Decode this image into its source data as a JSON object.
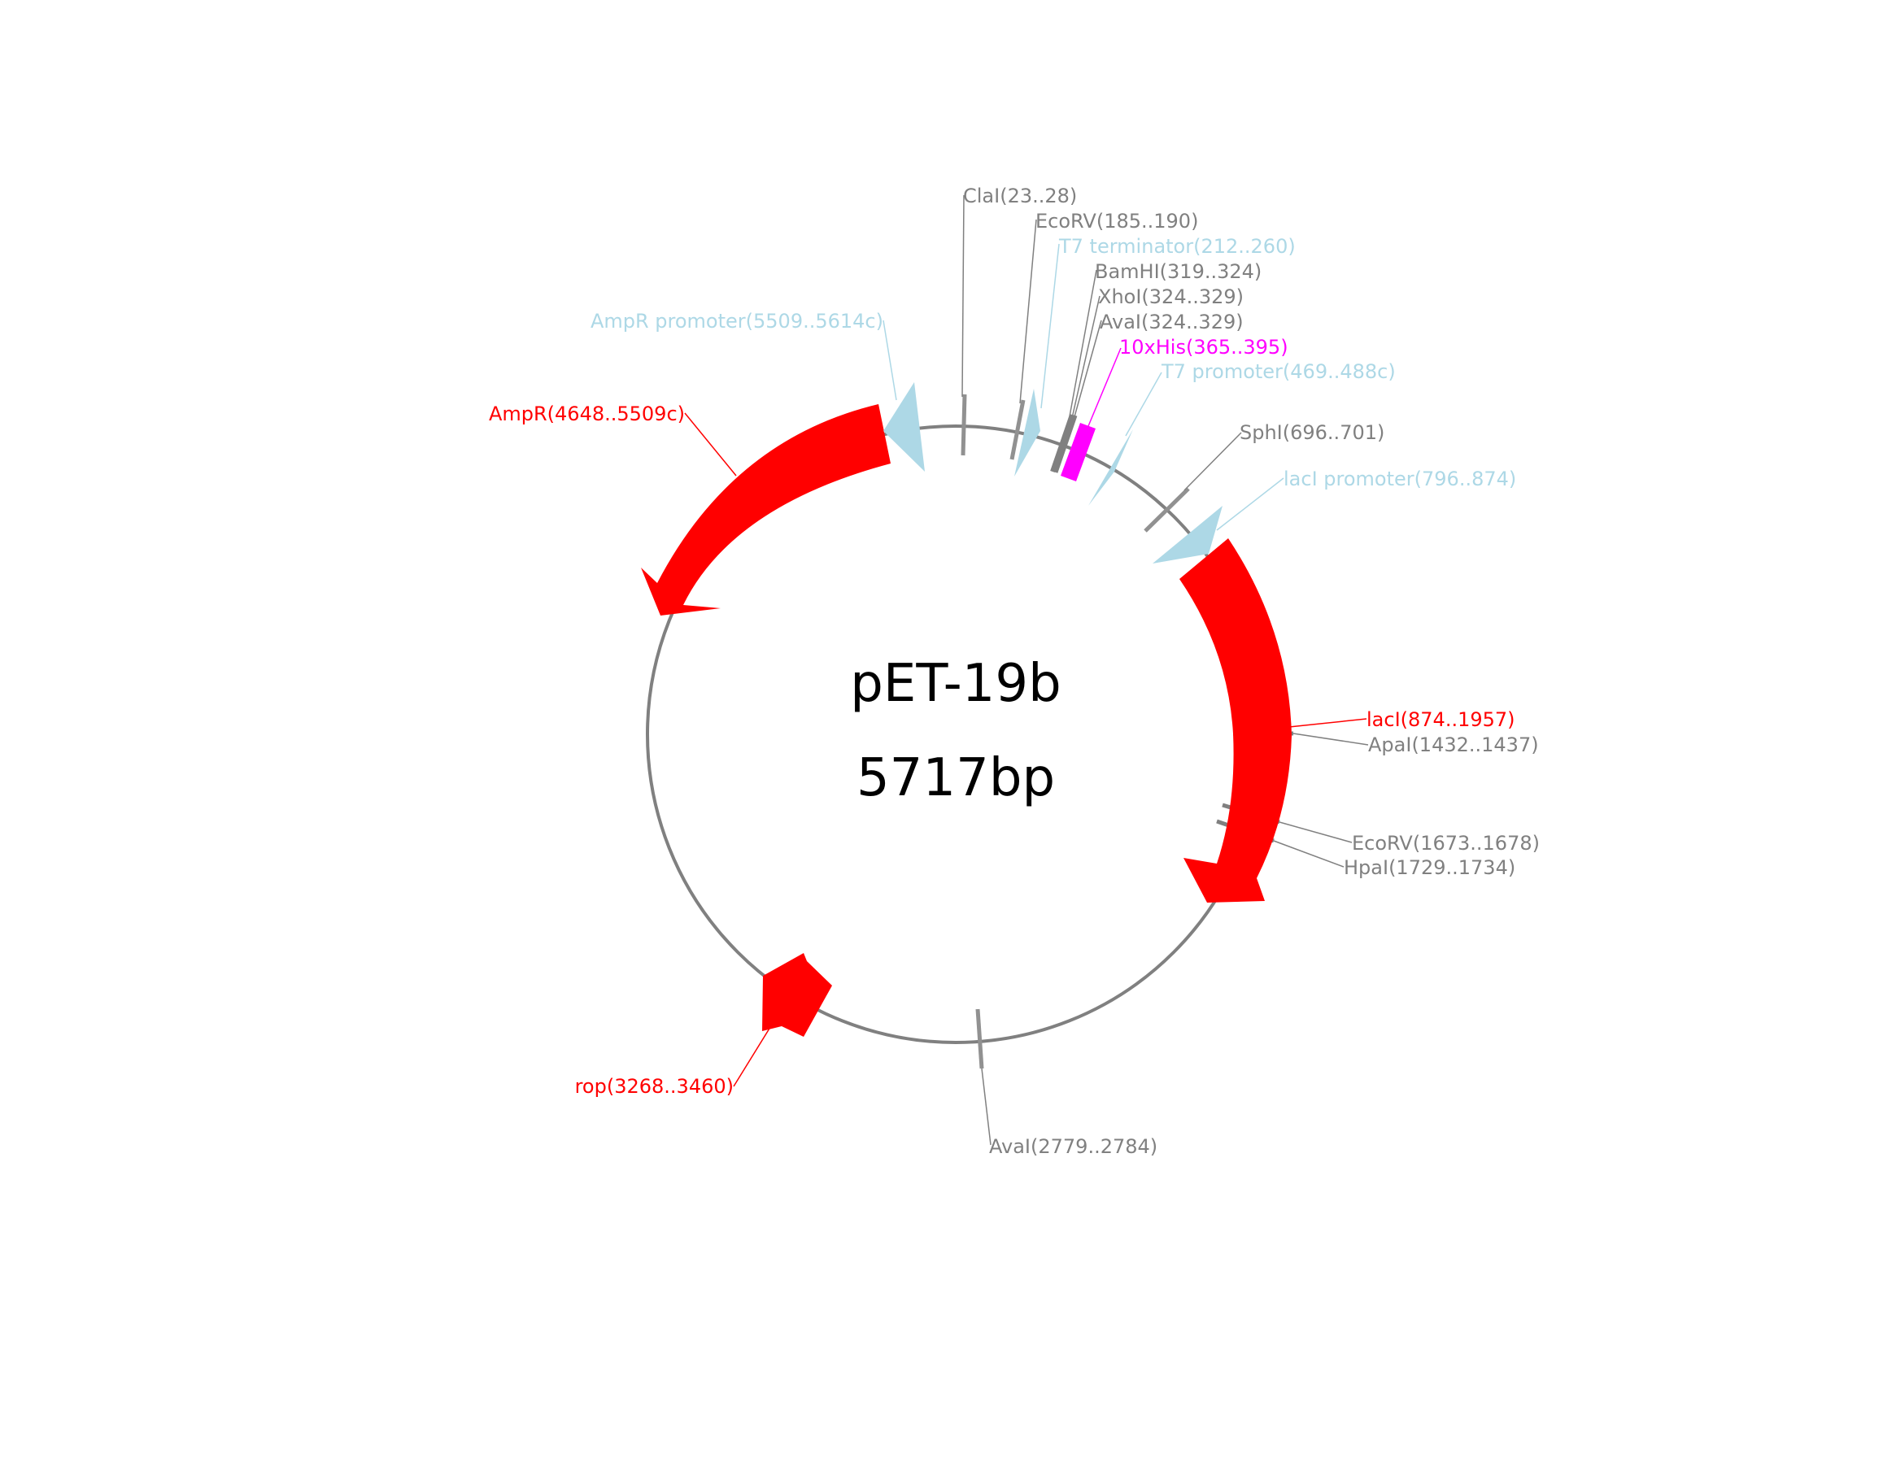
{
  "plasmid": {
    "name": "pET-19b",
    "size_label": "5717bp"
  },
  "colors": {
    "backbone": "#808080",
    "cds": "#ff0000",
    "promoter_terminator": "#add8e6",
    "tag": "#ff00ff",
    "site": "#808080"
  },
  "features": [
    {
      "label": "AmpR(4648..5509c)",
      "kind": "cds",
      "color": "#ff0000",
      "strand": "reverse"
    },
    {
      "label": "AmpR promoter(5509..5614c)",
      "kind": "promoter",
      "color": "#add8e6",
      "strand": "reverse"
    },
    {
      "label": "T7 terminator(212..260)",
      "kind": "terminator",
      "color": "#add8e6",
      "strand": "reverse"
    },
    {
      "label": "10xHis(365..395)",
      "kind": "tag",
      "color": "#ff00ff",
      "strand": "none"
    },
    {
      "label": "T7 promoter(469..488c)",
      "kind": "promoter",
      "color": "#add8e6",
      "strand": "reverse"
    },
    {
      "label": "lacI promoter(796..874)",
      "kind": "promoter",
      "color": "#add8e6",
      "strand": "reverse"
    },
    {
      "label": "lacI(874..1957)",
      "kind": "cds",
      "color": "#ff0000",
      "strand": "forward"
    },
    {
      "label": "rop(3268..3460)",
      "kind": "cds",
      "color": "#ff0000",
      "strand": "reverse"
    }
  ],
  "sites": [
    {
      "label": "ClaI(23..28)"
    },
    {
      "label": "EcoRV(185..190)"
    },
    {
      "label": "BamHI(319..324)"
    },
    {
      "label": "XhoI(324..329)"
    },
    {
      "label": "AvaI(324..329)"
    },
    {
      "label": "SphI(696..701)"
    },
    {
      "label": "ApaI(1432..1437)"
    },
    {
      "label": "EcoRV(1673..1678)"
    },
    {
      "label": "HpaI(1729..1734)"
    },
    {
      "label": "AvaI(2779..2784)"
    }
  ]
}
